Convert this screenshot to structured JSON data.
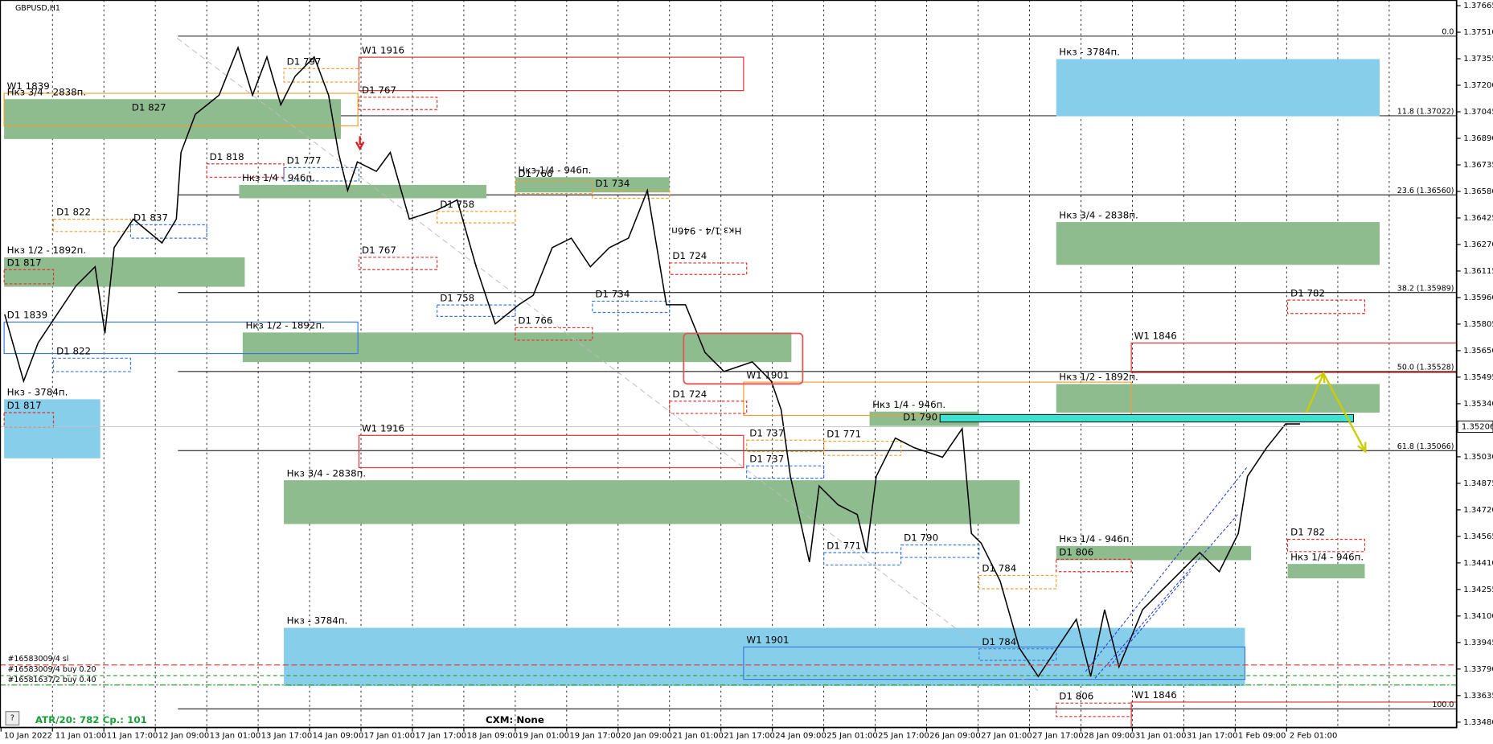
{
  "chart_data": {
    "type": "line",
    "title": "GBPUSD,H1",
    "color": "#000000",
    "x": [
      0.07,
      0.44,
      0.72,
      1.09,
      1.46,
      1.83,
      2.02,
      2.2,
      2.57,
      3.13,
      3.41,
      3.5,
      3.78,
      4.24,
      4.61,
      4.89,
      5.17,
      5.44,
      5.72,
      6.09,
      6.37,
      6.56,
      6.74,
      6.93,
      7.3,
      7.57,
      7.94,
      8.5,
      8.87,
      9.24,
      9.61,
      10.07,
      10.35,
      10.72,
      11.09,
      11.46,
      11.83,
      12.2,
      12.57,
      12.94,
      13.31,
      13.69,
      14.06,
      14.61,
      14.98,
      15.17,
      15.35,
      15.72,
      15.91,
      16.28,
      16.65,
      16.83,
      17.02,
      17.39,
      17.76,
      18.31,
      18.69,
      18.87,
      19.06,
      19.43,
      19.8,
      20.17,
      20.54,
      20.91,
      21.19,
      21.46,
      21.74,
      22.2,
      22.57,
      22.94,
      23.31,
      23.69,
      24.06,
      24.24,
      24.61,
      24.98,
      25.26
    ],
    "values": [
      1.35862,
      1.35472,
      1.35695,
      1.35862,
      1.36029,
      1.3614,
      1.35751,
      1.36252,
      1.36418,
      1.36279,
      1.36418,
      1.36808,
      1.37031,
      1.37142,
      1.3742,
      1.37142,
      1.37365,
      1.37086,
      1.37253,
      1.37365,
      1.37142,
      1.36808,
      1.36585,
      1.36752,
      1.36697,
      1.36808,
      1.36418,
      1.36474,
      1.3653,
      1.3614,
      1.35806,
      1.35918,
      1.35973,
      1.36252,
      1.36307,
      1.3614,
      1.36252,
      1.36307,
      1.36585,
      1.35918,
      1.35918,
      1.35639,
      1.35528,
      1.35584,
      1.35472,
      1.35305,
      1.34916,
      1.34415,
      1.3486,
      1.34749,
      1.34693,
      1.34471,
      1.34916,
      1.35139,
      1.35083,
      1.35027,
      1.35194,
      1.34582,
      1.34526,
      1.34304,
      1.33914,
      1.33747,
      1.33914,
      1.34081,
      1.33747,
      1.34137,
      1.33803,
      1.34137,
      1.34248,
      1.34359,
      1.34471,
      1.34359,
      1.34582,
      1.34916,
      1.35083,
      1.35222,
      1.35222
    ],
    "xlim": [
      -0.02,
      28.31
    ],
    "ylim": [
      1.33447,
      1.37698
    ],
    "grid": "x",
    "xticks": [
      {
        "value": 0,
        "label": "10 Jan 2022"
      },
      {
        "value": 1,
        "label": "11 Jan 01:00"
      },
      {
        "value": 2,
        "label": "11 Jan 17:00"
      },
      {
        "value": 3,
        "label": "12 Jan 09:00"
      },
      {
        "value": 4,
        "label": "13 Jan 01:00"
      },
      {
        "value": 5,
        "label": "13 Jan 17:00"
      },
      {
        "value": 6,
        "label": "14 Jan 09:00"
      },
      {
        "value": 7,
        "label": "17 Jan 01:00"
      },
      {
        "value": 8,
        "label": "17 Jan 17:00"
      },
      {
        "value": 9,
        "label": "18 Jan 09:00"
      },
      {
        "value": 10,
        "label": "19 Jan 01:00"
      },
      {
        "value": 11,
        "label": "19 Jan 17:00"
      },
      {
        "value": 12,
        "label": "20 Jan 09:00"
      },
      {
        "value": 13,
        "label": "21 Jan 01:00"
      },
      {
        "value": 14,
        "label": "21 Jan 17:00"
      },
      {
        "value": 15,
        "label": "24 Jan 09:00"
      },
      {
        "value": 16,
        "label": "25 Jan 01:00"
      },
      {
        "value": 17,
        "label": "25 Jan 17:00"
      },
      {
        "value": 18,
        "label": "26 Jan 09:00"
      },
      {
        "value": 19,
        "label": "27 Jan 01:00"
      },
      {
        "value": 20,
        "label": "27 Jan 17:00"
      },
      {
        "value": 21,
        "label": "28 Jan 09:00"
      },
      {
        "value": 22,
        "label": "31 Jan 01:00"
      },
      {
        "value": 23,
        "label": "31 Jan 17:00"
      },
      {
        "value": 24,
        "label": "1 Feb 09:00"
      },
      {
        "value": 25,
        "label": "2 Feb 01:00"
      }
    ],
    "yticks": [
      1.37665,
      {
        "value": 1.3751,
        "label": "1.37510"
      },
      1.37355,
      {
        "value": 1.372,
        "label": "1.37200"
      },
      1.37045,
      {
        "value": 1.3689,
        "label": "1.36890"
      },
      1.36735,
      {
        "value": 1.3658,
        "label": "1.36580"
      },
      1.36425,
      {
        "value": 1.3627,
        "label": "1.36270"
      },
      1.36115,
      {
        "value": 1.3596,
        "label": "1.35960"
      },
      1.35805,
      {
        "value": 1.3565,
        "label": "1.35650"
      },
      1.35495,
      {
        "value": 1.3534,
        "label": "1.35340"
      },
      1.35185,
      {
        "value": 1.3503,
        "label": "1.35030"
      },
      1.34875,
      {
        "value": 1.3472,
        "label": "1.34720"
      },
      1.34565,
      {
        "value": 1.3441,
        "label": "1.34410"
      },
      1.34255,
      {
        "value": 1.341,
        "label": "1.34100"
      },
      1.33945,
      {
        "value": 1.3379,
        "label": "1.33790"
      },
      1.33635,
      {
        "value": 1.3348,
        "label": "1.33480"
      }
    ],
    "last_price": 1.35206,
    "last_price_color": "#c0c0c0",
    "fib_x": 3.44,
    "fib_levels": [
      {
        "label": "0.0",
        "price": 1.37487
      },
      {
        "label": "11.8 (1.37022)",
        "price": 1.37022
      },
      {
        "label": "23.6 (1.36560)",
        "price": 1.3656
      },
      {
        "label": "38.2 (1.35989)",
        "price": 1.35989
      },
      {
        "label": "50.0 (1.35528)",
        "price": 1.35528
      },
      {
        "label": "61.8 (1.35066)",
        "price": 1.35066
      },
      {
        "label": "100.0",
        "price": 1.33558
      }
    ],
    "zone_styles": {
      "blue": {
        "fill": "#87ceeb",
        "stroke": "none",
        "dash": "none"
      },
      "green": {
        "fill": "#8fbc8f",
        "stroke": "none",
        "dash": "none"
      },
      "red": {
        "fill": "none",
        "stroke": "#e03030",
        "dash": "none"
      },
      "blue-outline": {
        "fill": "none",
        "stroke": "#3a7bd5",
        "dash": "none"
      },
      "orange-outline": {
        "fill": "none",
        "stroke": "#f0a030",
        "dash": "none"
      },
      "red-dashed": {
        "fill": "none",
        "stroke": "#e03030",
        "dash": "3 2"
      },
      "orange-dashed": {
        "fill": "none",
        "stroke": "#f0a030",
        "dash": "3 2"
      },
      "blue-dashed": {
        "fill": "none",
        "stroke": "#3a7bd5",
        "dash": "3 2"
      }
    },
    "zones": [
      {
        "label": "Нкз - 3784п.",
        "x": [
          20.52,
          26.81
        ],
        "y": [
          1.37353,
          1.37019
        ],
        "style": "blue"
      },
      {
        "label": "Нкз - 3784п.",
        "x": [
          0.06,
          1.93
        ],
        "y": [
          1.35366,
          1.35021
        ],
        "style": "blue"
      },
      {
        "label": "Нкз - 3784п.",
        "x": [
          5.5,
          24.19
        ],
        "y": [
          1.34031,
          1.33691
        ],
        "style": "blue"
      },
      {
        "label": "Нкз 3/4 - 2838п.",
        "x": [
          0.06,
          6.61
        ],
        "y": [
          1.37119,
          1.36886
        ],
        "style": "green"
      },
      {
        "label": "Нкз 1/4 - 946п.",
        "x": [
          4.63,
          9.44
        ],
        "y": [
          1.36618,
          1.3654
        ],
        "style": "green"
      },
      {
        "label": "Нкз 1/2 - 1892п.",
        "x": [
          0.06,
          4.74
        ],
        "y": [
          1.36195,
          1.36023
        ],
        "style": "green"
      },
      {
        "label": "Нкз 1/2 - 1892п.",
        "x": [
          4.7,
          15.37
        ],
        "y": [
          1.35756,
          1.35583
        ],
        "style": "green"
      },
      {
        "label": "Нкз 1/4 - 946п.",
        "x": [
          10.0,
          13.0
        ],
        "y": [
          1.36663,
          1.36574
        ],
        "style": "green"
      },
      {
        "label": "Нкз 3/4 - 2838п.",
        "x": [
          5.5,
          19.81
        ],
        "y": [
          1.34893,
          1.34637
        ],
        "style": "green"
      },
      {
        "label": "Нкз 1/4 - 946п.",
        "x": [
          16.89,
          19.02
        ],
        "y": [
          1.35294,
          1.3521
        ],
        "style": "green"
      },
      {
        "label": "Нкз 3/4 - 2838п.",
        "x": [
          20.52,
          26.81
        ],
        "y": [
          1.36401,
          1.36151
        ],
        "style": "green"
      },
      {
        "label": "Нкз 1/2 - 1892п.",
        "x": [
          20.52,
          26.81
        ],
        "y": [
          1.35455,
          1.35288
        ],
        "style": "green"
      },
      {
        "label": "Нкз 1/4 - 946п.",
        "x": [
          20.52,
          24.31
        ],
        "y": [
          1.34509,
          1.34426
        ],
        "style": "green"
      },
      {
        "label": "Нкз 1/4 - 946п.",
        "x": [
          25.02,
          26.52
        ],
        "y": [
          1.34404,
          1.3432
        ],
        "style": "green"
      },
      {
        "label": "W1 1916",
        "x": [
          6.96,
          14.44
        ],
        "y": [
          1.37364,
          1.37169
        ],
        "style": "red"
      },
      {
        "label": "W1 1916",
        "x": [
          6.96,
          14.44
        ],
        "y": [
          1.35155,
          1.34966
        ],
        "style": "red"
      },
      {
        "label": "W1 1846",
        "x": [
          21.98,
          28.31
        ],
        "y": [
          1.35695,
          1.35522
        ],
        "style": "red"
      },
      {
        "label": "W1 1846",
        "x": [
          21.98,
          28.31
        ],
        "y": [
          1.33597,
          1.33447
        ],
        "style": "red"
      },
      {
        "label": "W1 1901",
        "x": [
          14.44,
          24.19
        ],
        "y": [
          1.33919,
          1.3373
        ],
        "style": "blue-outline"
      },
      {
        "label": "D1 1839",
        "x": [
          0.06,
          6.94
        ],
        "y": [
          1.35817,
          1.35633
        ],
        "style": "blue-outline"
      },
      {
        "label": "W1 1839",
        "x": [
          0.06,
          6.94
        ],
        "y": [
          1.37153,
          1.36963
        ],
        "style": "orange-outline"
      },
      {
        "label": "W1 1901",
        "x": [
          14.44,
          21.98
        ],
        "y": [
          1.35466,
          1.35272
        ],
        "style": "orange-outline"
      },
      {
        "label": "D1 767",
        "x": [
          6.96,
          8.48
        ],
        "y": [
          1.3713,
          1.37058
        ],
        "style": "red-dashed"
      },
      {
        "label": "D1 818",
        "x": [
          4.0,
          5.5
        ],
        "y": [
          1.36741,
          1.36663
        ],
        "style": "red-dashed"
      },
      {
        "label": "D1 767",
        "x": [
          6.96,
          8.48
        ],
        "y": [
          1.36195,
          1.36123
        ],
        "style": "red-dashed"
      },
      {
        "label": "D1 817",
        "x": [
          0.06,
          1.02
        ],
        "y": [
          1.36123,
          1.3604
        ],
        "style": "red-dashed"
      },
      {
        "label": "D1 817",
        "x": [
          0.06,
          1.02
        ],
        "y": [
          1.35288,
          1.35205
        ],
        "style": "red-dashed"
      },
      {
        "label": "D1 766",
        "x": [
          10.0,
          11.5
        ],
        "y": [
          1.35784,
          1.35711
        ],
        "style": "red-dashed"
      },
      {
        "label": "D1 724",
        "x": [
          13.0,
          14.5
        ],
        "y": [
          1.36162,
          1.36095
        ],
        "style": "red-dashed"
      },
      {
        "label": "D1 724",
        "x": [
          13.0,
          14.5
        ],
        "y": [
          1.35355,
          1.35283
        ],
        "style": "red-dashed"
      },
      {
        "label": "D1 782",
        "x": [
          25.02,
          26.52
        ],
        "y": [
          1.35945,
          1.35867
        ],
        "style": "red-dashed"
      },
      {
        "label": "D1 782",
        "x": [
          25.02,
          26.52
        ],
        "y": [
          1.34548,
          1.34476
        ],
        "style": "red-dashed"
      },
      {
        "label": "D1 806",
        "x": [
          20.52,
          21.98
        ],
        "y": [
          1.34431,
          1.34359
        ],
        "style": "red-dashed"
      },
      {
        "label": "D1 806",
        "x": [
          20.52,
          21.98
        ],
        "y": [
          1.33591,
          1.33513
        ],
        "style": "red-dashed"
      },
      {
        "label": "D1 797",
        "x": [
          5.5,
          6.96
        ],
        "y": [
          1.37297,
          1.37219
        ],
        "style": "orange-dashed"
      },
      {
        "label": "D1 822",
        "x": [
          1.02,
          2.52
        ],
        "y": [
          1.36418,
          1.36346
        ],
        "style": "orange-dashed"
      },
      {
        "label": "D1 766",
        "x": [
          10.0,
          11.5
        ],
        "y": [
          1.36641,
          1.36568
        ],
        "style": "orange-dashed"
      },
      {
        "label": "D1 758",
        "x": [
          8.48,
          10.0
        ],
        "y": [
          1.36463,
          1.36396
        ],
        "style": "orange-dashed"
      },
      {
        "label": "D1 734",
        "x": [
          11.5,
          13.0
        ],
        "y": [
          1.36585,
          1.3654
        ],
        "style": "orange-dashed"
      },
      {
        "label": "D1 737",
        "x": [
          14.5,
          16.0
        ],
        "y": [
          1.35127,
          1.3506
        ],
        "style": "orange-dashed"
      },
      {
        "label": "D1 771",
        "x": [
          16.0,
          17.5
        ],
        "y": [
          1.35121,
          1.35038
        ],
        "style": "orange-dashed"
      },
      {
        "label": "D1 784",
        "x": [
          19.02,
          20.52
        ],
        "y": [
          1.34337,
          1.34259
        ],
        "style": "orange-dashed"
      },
      {
        "label": "D1 777",
        "x": [
          5.5,
          6.96
        ],
        "y": [
          1.36719,
          1.36641
        ],
        "style": "blue-dashed"
      },
      {
        "label": "D1 837",
        "x": [
          2.52,
          4.0
        ],
        "y": [
          1.36385,
          1.36307
        ],
        "style": "blue-dashed"
      },
      {
        "label": "D1 822",
        "x": [
          1.02,
          2.52
        ],
        "y": [
          1.35606,
          1.35528
        ],
        "style": "blue-dashed"
      },
      {
        "label": "D1 758",
        "x": [
          8.48,
          10.0
        ],
        "y": [
          1.35917,
          1.3585
        ],
        "style": "blue-dashed"
      },
      {
        "label": "D1 734",
        "x": [
          11.5,
          13.0
        ],
        "y": [
          1.35939,
          1.35873
        ],
        "style": "blue-dashed"
      },
      {
        "label": "D1 737",
        "x": [
          14.5,
          16.0
        ],
        "y": [
          1.34977,
          1.34905
        ],
        "style": "blue-dashed"
      },
      {
        "label": "D1 771",
        "x": [
          16.0,
          17.5
        ],
        "y": [
          1.3447,
          1.34398
        ],
        "style": "blue-dashed"
      },
      {
        "label": "D1 790",
        "x": [
          17.5,
          19.02
        ],
        "y": [
          1.34515,
          1.34442
        ],
        "style": "blue-dashed"
      },
      {
        "label": "D1 784",
        "x": [
          19.02,
          20.52
        ],
        "y": [
          1.33908,
          1.33841
        ],
        "style": "blue-dashed"
      }
    ],
    "highlight": {
      "x": [
        18.26,
        26.3
      ],
      "y": [
        1.35277,
        1.35233
      ],
      "color": "#40e0d0"
    },
    "notes": [
      {
        "text": "D1 827",
        "x": 2.54,
        "price": 1.37069,
        "rotate": 0
      },
      {
        "text": "D1 790",
        "x": 17.54,
        "price": 1.3526,
        "rotate": 0
      },
      {
        "text": "Нкз 1/4 - 946п.",
        "x": 14.4,
        "price": 1.36351,
        "rotate": 180
      }
    ],
    "orders": [
      {
        "label": "#16583009/4 sl",
        "price": 1.33814,
        "color": "#e04040",
        "dash": "6 3"
      },
      {
        "label": "#16583009/4 buy 0.20",
        "price": 1.33752,
        "color": "#2e9e2e",
        "dash": "4 3"
      },
      {
        "label": "#16581637/2 buy 0.40",
        "price": 1.33697,
        "color": "#2e9e2e",
        "dash": "6 2 2 2"
      }
    ],
    "status": {
      "atr": "ATR/20: 782  Ср.: 101",
      "cxm": "CXM: None"
    }
  }
}
